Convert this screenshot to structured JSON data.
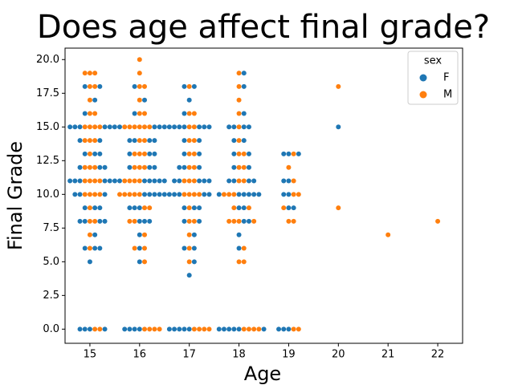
{
  "chart_data": {
    "type": "swarm",
    "title": "Does age affect final grade?",
    "x_label": "Age",
    "y_label": "Final Grade",
    "categories": [
      15,
      16,
      17,
      18,
      19,
      20,
      21,
      22
    ],
    "legend_title": "sex",
    "legend_position": "upper right",
    "ylim": [
      -1.05,
      20.85
    ],
    "yticks": [
      {
        "value": 0,
        "label": "0.0"
      },
      {
        "value": 2.5,
        "label": "2.5"
      },
      {
        "value": 5,
        "label": "5.0"
      },
      {
        "value": 7.5,
        "label": "7.5"
      },
      {
        "value": 10,
        "label": "10.0"
      },
      {
        "value": 12.5,
        "label": "12.5"
      },
      {
        "value": 15,
        "label": "15.0"
      },
      {
        "value": 17.5,
        "label": "17.5"
      },
      {
        "value": 20,
        "label": "20.0"
      }
    ],
    "series": [
      {
        "name": "F",
        "color": "#1f77b4",
        "values": [
          [
            0,
            0,
            0,
            0,
            5,
            6,
            6,
            6,
            7,
            8,
            8,
            8,
            8,
            9,
            9,
            9,
            10,
            10,
            10,
            11,
            11,
            11,
            11,
            11,
            11,
            12,
            12,
            12,
            13,
            13,
            13,
            14,
            14,
            15,
            15,
            15,
            15,
            15,
            16,
            17,
            18,
            18
          ],
          [
            0,
            0,
            0,
            0,
            5,
            6,
            7,
            8,
            8,
            8,
            9,
            9,
            9,
            10,
            10,
            10,
            10,
            10,
            11,
            11,
            11,
            11,
            11,
            11,
            12,
            12,
            12,
            13,
            13,
            13,
            14,
            14,
            14,
            14,
            15,
            15,
            15,
            15,
            15,
            16,
            17,
            18
          ],
          [
            0,
            0,
            0,
            0,
            0,
            4,
            5,
            6,
            6,
            7,
            8,
            8,
            9,
            9,
            9,
            10,
            10,
            10,
            10,
            10,
            11,
            11,
            11,
            11,
            11,
            12,
            12,
            12,
            13,
            13,
            14,
            14,
            15,
            15,
            15,
            15,
            15,
            15,
            15,
            16,
            17,
            18,
            18
          ],
          [
            0,
            0,
            0,
            0,
            0,
            0,
            6,
            7,
            8,
            8,
            9,
            9,
            10,
            10,
            10,
            10,
            10,
            10,
            11,
            11,
            11,
            11,
            12,
            12,
            13,
            13,
            14,
            14,
            15,
            15,
            15,
            15,
            16,
            18,
            19
          ],
          [
            0,
            0,
            0,
            9,
            9,
            10,
            10,
            11,
            11,
            13,
            13,
            13
          ],
          [
            15
          ],
          [],
          []
        ]
      },
      {
        "name": "M",
        "color": "#ff7f0e",
        "values": [
          [
            0,
            0,
            6,
            7,
            8,
            8,
            9,
            10,
            10,
            10,
            10,
            11,
            11,
            11,
            11,
            12,
            12,
            12,
            13,
            14,
            14,
            14,
            15,
            15,
            15,
            15,
            16,
            16,
            17,
            18,
            18,
            19,
            19,
            19
          ],
          [
            0,
            0,
            0,
            0,
            5,
            6,
            6,
            7,
            8,
            8,
            9,
            9,
            10,
            10,
            10,
            10,
            10,
            11,
            11,
            11,
            11,
            12,
            12,
            12,
            13,
            13,
            13,
            14,
            14,
            15,
            15,
            15,
            15,
            15,
            15,
            16,
            16,
            17,
            18,
            18,
            19,
            20
          ],
          [
            0,
            0,
            0,
            0,
            5,
            6,
            7,
            8,
            8,
            9,
            10,
            10,
            10,
            10,
            11,
            11,
            11,
            12,
            12,
            13,
            13,
            14,
            14,
            15,
            15,
            16,
            16,
            18
          ],
          [
            0,
            0,
            0,
            0,
            5,
            5,
            6,
            8,
            8,
            8,
            8,
            9,
            9,
            10,
            10,
            10,
            11,
            11,
            12,
            12,
            13,
            13,
            14,
            15,
            16,
            17,
            18,
            19
          ],
          [
            0,
            0,
            8,
            8,
            9,
            10,
            10,
            11,
            12,
            13
          ],
          [
            9,
            18
          ],
          [
            7
          ],
          [
            8
          ]
        ]
      }
    ]
  }
}
